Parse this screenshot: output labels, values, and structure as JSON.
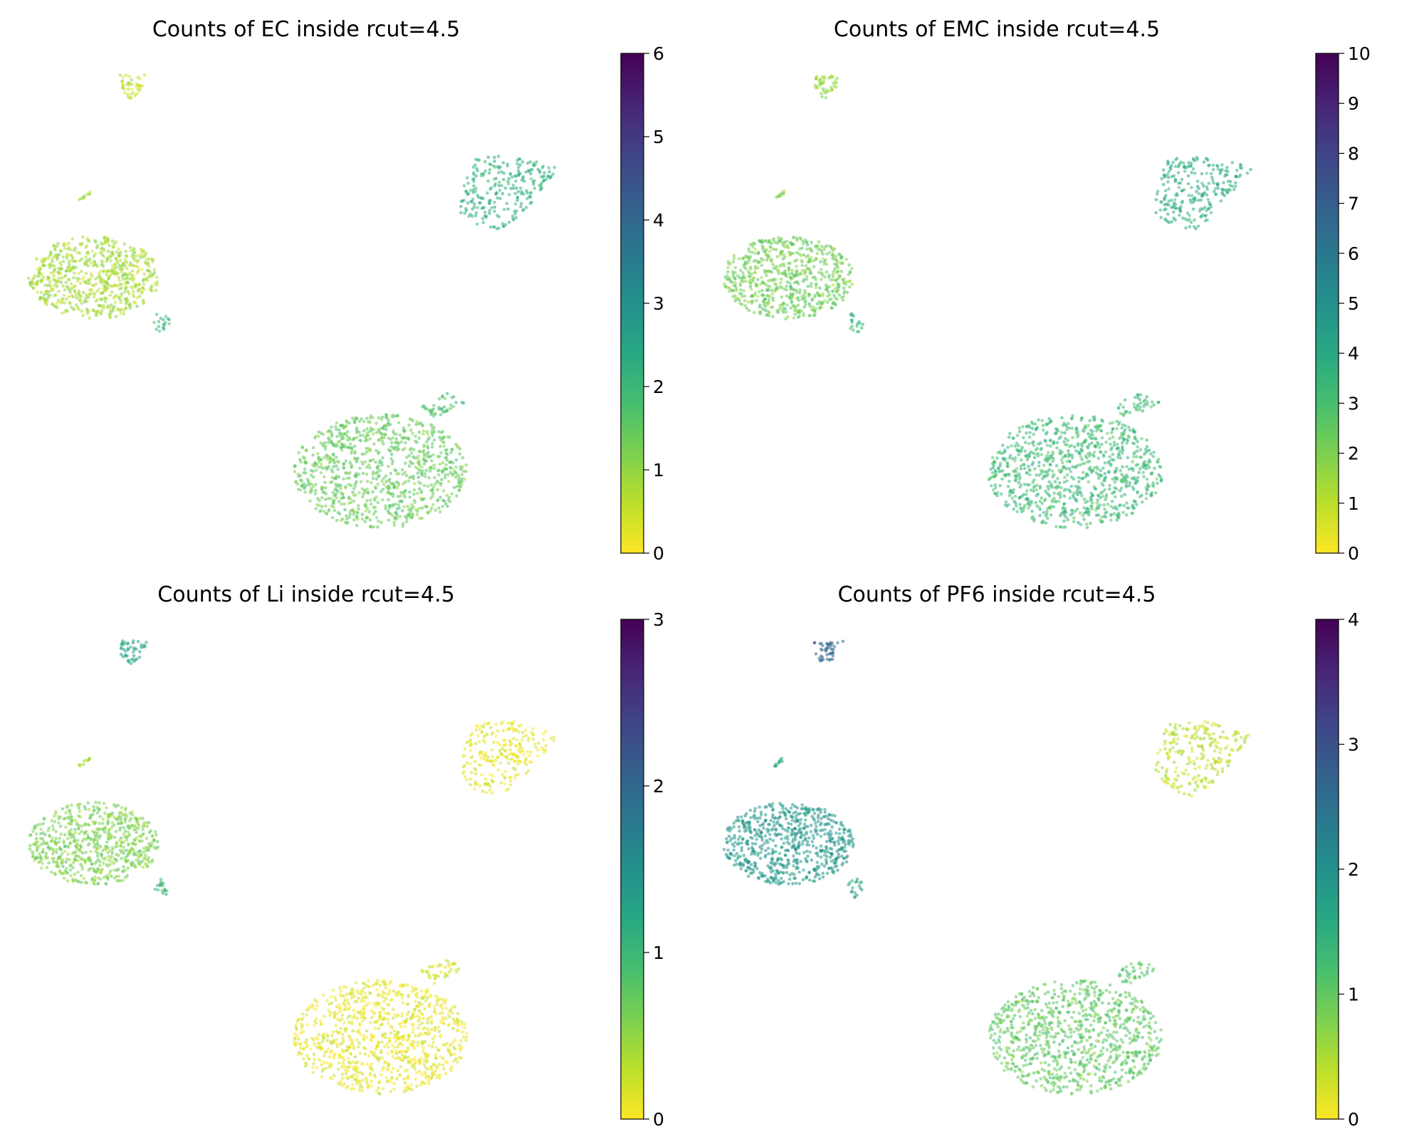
{
  "chart_data": [
    {
      "type": "scatter",
      "title": "Counts of EC inside rcut=4.5",
      "colorbar": {
        "colormap": "viridis_r",
        "range": [
          0,
          6
        ],
        "ticks": [
          "0",
          "1",
          "2",
          "3",
          "4",
          "5",
          "6"
        ]
      },
      "axes_visible": false,
      "clusters": [
        {
          "name": "top-small",
          "mean_value": 0.5
        },
        {
          "name": "tiny-streak",
          "mean_value": 0.8
        },
        {
          "name": "left-large",
          "mean_value": 0.8
        },
        {
          "name": "left-satellite",
          "mean_value": 2.0
        },
        {
          "name": "upper-right",
          "mean_value": 2.2
        },
        {
          "name": "bottom-large",
          "mean_value": 1.4
        },
        {
          "name": "bottom-lobe",
          "mean_value": 1.8
        }
      ]
    },
    {
      "type": "scatter",
      "title": "Counts of EMC inside rcut=4.5",
      "colorbar": {
        "colormap": "viridis_r",
        "range": [
          0,
          10
        ],
        "ticks": [
          "0",
          "1",
          "2",
          "3",
          "4",
          "5",
          "6",
          "7",
          "8",
          "9",
          "10"
        ]
      },
      "axes_visible": false,
      "clusters": [
        {
          "name": "top-small",
          "mean_value": 1.5
        },
        {
          "name": "tiny-streak",
          "mean_value": 2.0
        },
        {
          "name": "left-large",
          "mean_value": 2.2
        },
        {
          "name": "left-satellite",
          "mean_value": 3.5
        },
        {
          "name": "upper-right",
          "mean_value": 3.8
        },
        {
          "name": "bottom-large",
          "mean_value": 3.2
        },
        {
          "name": "bottom-lobe",
          "mean_value": 3.3
        }
      ]
    },
    {
      "type": "scatter",
      "title": "Counts of Li inside rcut=4.5",
      "colorbar": {
        "colormap": "viridis_r",
        "range": [
          0,
          3
        ],
        "ticks": [
          "0",
          "1",
          "2",
          "3"
        ]
      },
      "axes_visible": false,
      "clusters": [
        {
          "name": "top-small",
          "mean_value": 1.3
        },
        {
          "name": "tiny-streak",
          "mean_value": 0.4
        },
        {
          "name": "left-large",
          "mean_value": 0.6
        },
        {
          "name": "left-satellite",
          "mean_value": 1.0
        },
        {
          "name": "upper-right",
          "mean_value": 0.1
        },
        {
          "name": "bottom-large",
          "mean_value": 0.1
        },
        {
          "name": "bottom-lobe",
          "mean_value": 0.2
        }
      ]
    },
    {
      "type": "scatter",
      "title": "Counts of PF6 inside rcut=4.5",
      "colorbar": {
        "colormap": "viridis_r",
        "range": [
          0,
          4
        ],
        "ticks": [
          "0",
          "1",
          "2",
          "3",
          "4"
        ]
      },
      "axes_visible": false,
      "clusters": [
        {
          "name": "top-small",
          "mean_value": 2.7
        },
        {
          "name": "tiny-streak",
          "mean_value": 1.6
        },
        {
          "name": "left-large",
          "mean_value": 1.9
        },
        {
          "name": "left-satellite",
          "mean_value": 1.8
        },
        {
          "name": "upper-right",
          "mean_value": 0.4
        },
        {
          "name": "bottom-large",
          "mean_value": 1.0
        },
        {
          "name": "bottom-lobe",
          "mean_value": 1.0
        }
      ]
    }
  ]
}
